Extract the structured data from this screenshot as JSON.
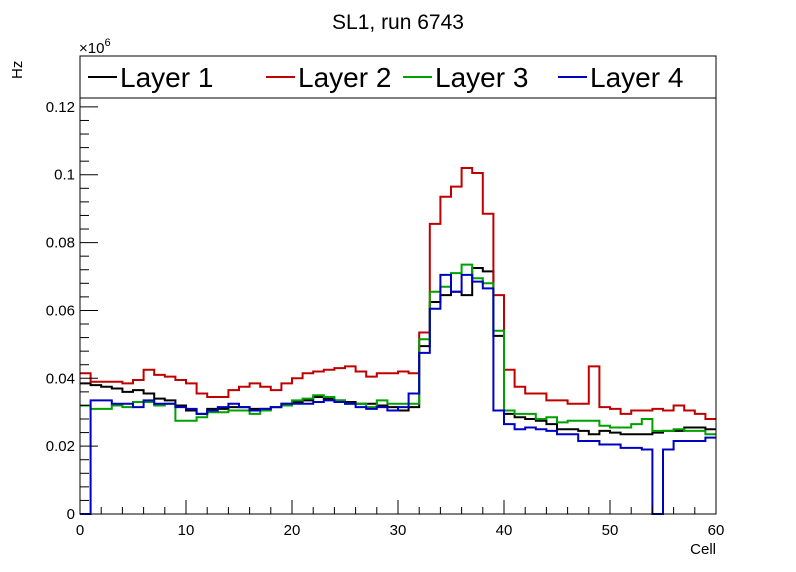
{
  "chart_data": {
    "type": "line",
    "title": "SL1, run 6743",
    "xlabel": "Cell",
    "ylabel": "Hz",
    "y_multiplier": "×10",
    "y_multiplier_exp": "6",
    "xlim": [
      0,
      60
    ],
    "ylim": [
      0,
      0.135
    ],
    "x_ticks": [
      0,
      10,
      20,
      30,
      40,
      50,
      60
    ],
    "x_tick_labels": [
      "0",
      "10",
      "20",
      "30",
      "40",
      "50",
      "60"
    ],
    "y_ticks": [
      0,
      0.02,
      0.04,
      0.06,
      0.08,
      0.1,
      0.12
    ],
    "y_tick_labels": [
      "0",
      "0.02",
      "0.04",
      "0.06",
      "0.08",
      "0.1",
      "0.12"
    ],
    "grid": false,
    "legend_position": "top",
    "bin_edges_start": 0,
    "bin_width": 1,
    "series": [
      {
        "name": "Layer 1",
        "color": "#000000",
        "values": [
          0.0385,
          0.038,
          0.0375,
          0.037,
          0.036,
          0.0365,
          0.0355,
          0.034,
          0.0335,
          0.032,
          0.0305,
          0.0295,
          0.031,
          0.031,
          0.0315,
          0.0315,
          0.031,
          0.031,
          0.0315,
          0.0325,
          0.033,
          0.0335,
          0.0345,
          0.034,
          0.0335,
          0.033,
          0.0325,
          0.0325,
          0.032,
          0.0315,
          0.0305,
          0.0315,
          0.0495,
          0.0625,
          0.0645,
          0.0655,
          0.0645,
          0.0725,
          0.0715,
          0.0525,
          0.0295,
          0.0285,
          0.028,
          0.0275,
          0.0265,
          0.025,
          0.025,
          0.0245,
          0.0235,
          0.0245,
          0.024,
          0.0235,
          0.0235,
          0.0235,
          0.024,
          0.0245,
          0.0245,
          0.0255,
          0.0255,
          0.025
        ]
      },
      {
        "name": "Layer 2",
        "color": "#c00000",
        "values": [
          0.0415,
          0.039,
          0.039,
          0.039,
          0.0385,
          0.0395,
          0.0425,
          0.041,
          0.0405,
          0.0395,
          0.0385,
          0.0355,
          0.0345,
          0.0345,
          0.0365,
          0.0375,
          0.0385,
          0.0375,
          0.0365,
          0.0385,
          0.04,
          0.0415,
          0.042,
          0.0425,
          0.043,
          0.0435,
          0.042,
          0.0405,
          0.0415,
          0.0415,
          0.042,
          0.0415,
          0.0535,
          0.0855,
          0.0935,
          0.0965,
          0.102,
          0.1005,
          0.0885,
          0.0645,
          0.0425,
          0.0375,
          0.0355,
          0.0355,
          0.0335,
          0.0335,
          0.0325,
          0.0325,
          0.0435,
          0.0315,
          0.031,
          0.0295,
          0.0305,
          0.0305,
          0.031,
          0.0305,
          0.032,
          0.0305,
          0.0295,
          0.028
        ]
      },
      {
        "name": "Layer 3",
        "color": "#00a000",
        "values": [
          0.032,
          0.031,
          0.031,
          0.032,
          0.0315,
          0.033,
          0.033,
          0.032,
          0.0325,
          0.0275,
          0.0275,
          0.0285,
          0.03,
          0.03,
          0.0305,
          0.0305,
          0.0295,
          0.0305,
          0.0315,
          0.032,
          0.0335,
          0.034,
          0.035,
          0.0345,
          0.0335,
          0.0325,
          0.0325,
          0.0315,
          0.0335,
          0.0325,
          0.0325,
          0.0325,
          0.0515,
          0.0655,
          0.067,
          0.071,
          0.0735,
          0.0695,
          0.068,
          0.054,
          0.0305,
          0.0295,
          0.0295,
          0.028,
          0.0285,
          0.027,
          0.0275,
          0.0275,
          0.0275,
          0.026,
          0.0255,
          0.0255,
          0.0265,
          0.028,
          0.0245,
          0.0245,
          0.025,
          0.0245,
          0.0245,
          0.0235
        ]
      },
      {
        "name": "Layer 4",
        "color": "#0000c0",
        "values": [
          0,
          0.0335,
          0.0335,
          0.0325,
          0.0325,
          0.0315,
          0.0335,
          0.0325,
          0.0325,
          0.0315,
          0.031,
          0.0295,
          0.0305,
          0.0315,
          0.0325,
          0.0315,
          0.0305,
          0.031,
          0.0315,
          0.0325,
          0.0325,
          0.0325,
          0.033,
          0.0335,
          0.033,
          0.0325,
          0.0315,
          0.031,
          0.0315,
          0.0305,
          0.0315,
          0.0355,
          0.0475,
          0.0605,
          0.0705,
          0.0655,
          0.0705,
          0.0685,
          0.0665,
          0.0305,
          0.0265,
          0.025,
          0.0255,
          0.025,
          0.0245,
          0.0235,
          0.0235,
          0.0215,
          0.0215,
          0.0205,
          0.0205,
          0.0195,
          0.0195,
          0.019,
          0,
          0.019,
          0.0215,
          0.0215,
          0.0215,
          0.0225
        ]
      }
    ]
  }
}
